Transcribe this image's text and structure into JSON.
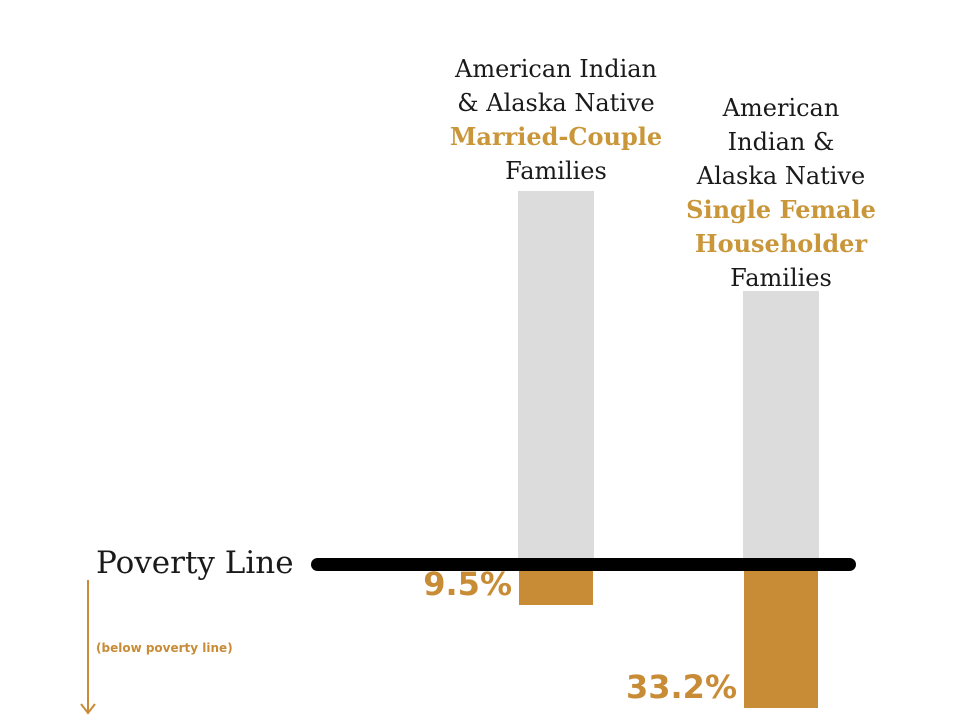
{
  "chart_data": {
    "type": "bar",
    "title": "",
    "xlabel": "",
    "ylabel": "",
    "unit": "%",
    "reference_line_label": "Poverty Line",
    "below_note": "(below poverty line)",
    "categories": [
      {
        "lines": [
          {
            "text": "American Indian",
            "accent": false
          },
          {
            "text": "& Alaska Native",
            "accent": false
          },
          {
            "text": "Married-Couple",
            "accent": true
          },
          {
            "text": "Families",
            "accent": false
          }
        ]
      },
      {
        "lines": [
          {
            "text": "American",
            "accent": false
          },
          {
            "text": "Indian &",
            "accent": false
          },
          {
            "text": "Alaska Native",
            "accent": false
          },
          {
            "text": "Single Female",
            "accent": true
          },
          {
            "text": "Householder",
            "accent": true
          },
          {
            "text": "Families",
            "accent": false
          }
        ]
      }
    ],
    "values": [
      9.5,
      33.2
    ],
    "value_labels": [
      "9.5%",
      "33.2%"
    ],
    "colors": {
      "below": "#c98c36",
      "above": "#dcdcdc",
      "line": "#000000",
      "accent_text": "#c9963a"
    }
  }
}
